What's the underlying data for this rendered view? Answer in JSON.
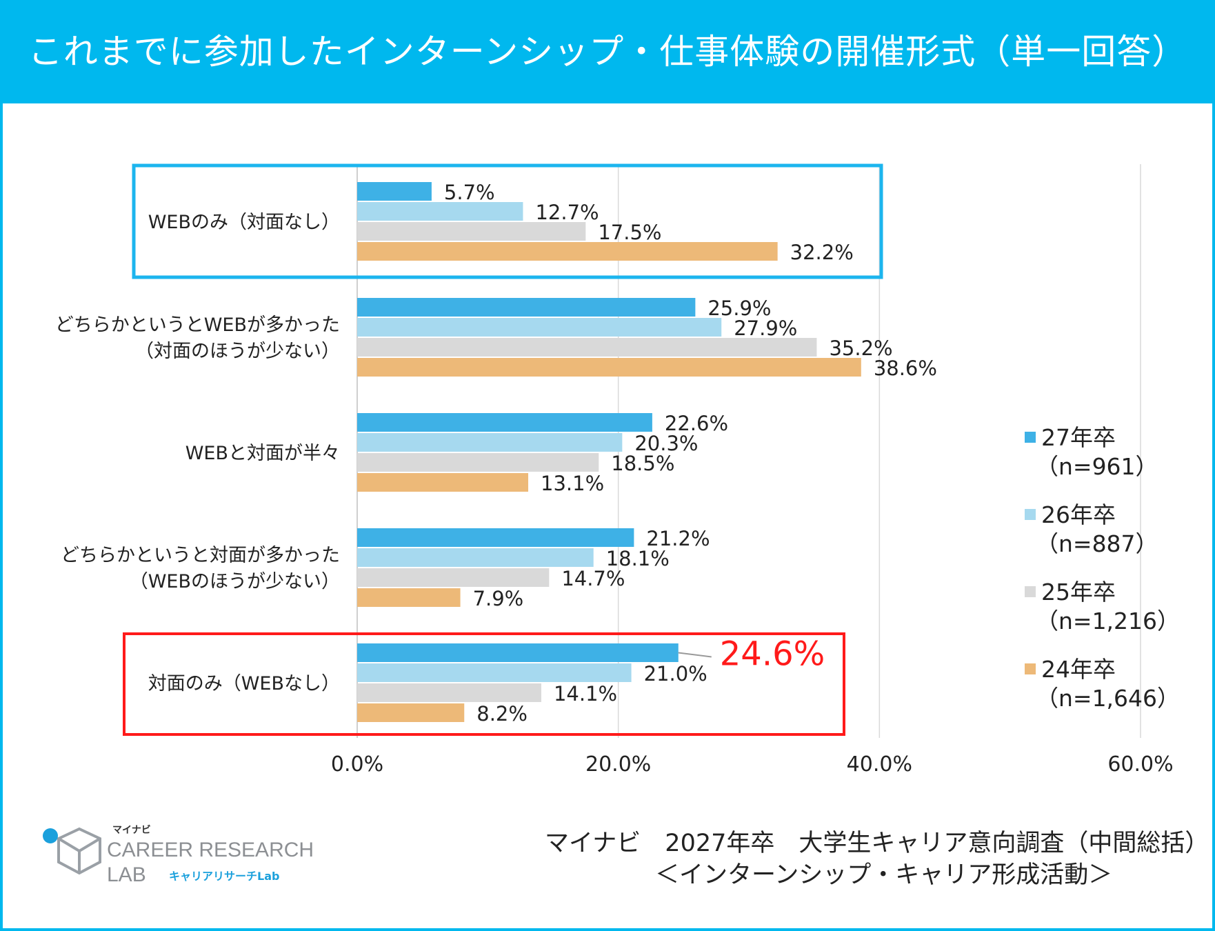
{
  "header": {
    "title": "これまでに参加したインターンシップ・仕事体験の開催形式（単一回答）"
  },
  "chart_data": {
    "type": "bar",
    "orientation": "horizontal",
    "title": "これまでに参加したインターンシップ・仕事体験の開催形式（単一回答）",
    "categories": [
      [
        "WEBのみ（対面なし）"
      ],
      [
        "どちらかというとWEBが多かった",
        "（対面のほうが少ない）"
      ],
      [
        "WEBと対面が半々"
      ],
      [
        "どちらかというと対面が多かった",
        "（WEBのほうが少ない）"
      ],
      [
        "対面のみ（WEBなし）"
      ]
    ],
    "series": [
      {
        "name": "27年卒",
        "n_label": "（n=961）",
        "color": "#3eb1e6",
        "values": [
          5.7,
          25.9,
          22.6,
          21.2,
          24.6
        ]
      },
      {
        "name": "26年卒",
        "n_label": "（n=887）",
        "color": "#a6d9ef",
        "values": [
          12.7,
          27.9,
          20.3,
          18.1,
          21.0
        ]
      },
      {
        "name": "25年卒",
        "n_label": "（n=1,216）",
        "color": "#d9d9d9",
        "values": [
          17.5,
          35.2,
          18.5,
          14.7,
          14.1
        ]
      },
      {
        "name": "24年卒",
        "n_label": "（n=1,646）",
        "color": "#edb978",
        "values": [
          32.2,
          38.6,
          13.1,
          7.9,
          8.2
        ]
      }
    ],
    "value_suffix": "%",
    "xlim": [
      0,
      60
    ],
    "xticks": [
      0,
      20,
      40,
      60
    ],
    "xtick_labels": [
      "0.0%",
      "20.0%",
      "40.0%",
      "60.0%"
    ],
    "grid": true,
    "legend": "right",
    "highlight": {
      "category_index": 4,
      "series_index": 0,
      "label": "24.6%",
      "color": "#ff1a1a"
    },
    "box_colors": {
      "first": "#1cb5ee",
      "last": "#ff1a1a"
    }
  },
  "source": {
    "line1": "マイナビ　2027年卒　大学生キャリア意向調査（中間総括）",
    "line2": "＜インターンシップ・キャリア形成活動＞"
  },
  "logo": {
    "brand_small": "マイナビ",
    "line1": "CAREER RESEARCH",
    "line2": "LAB",
    "tagline": "キャリアリサーチLab"
  }
}
